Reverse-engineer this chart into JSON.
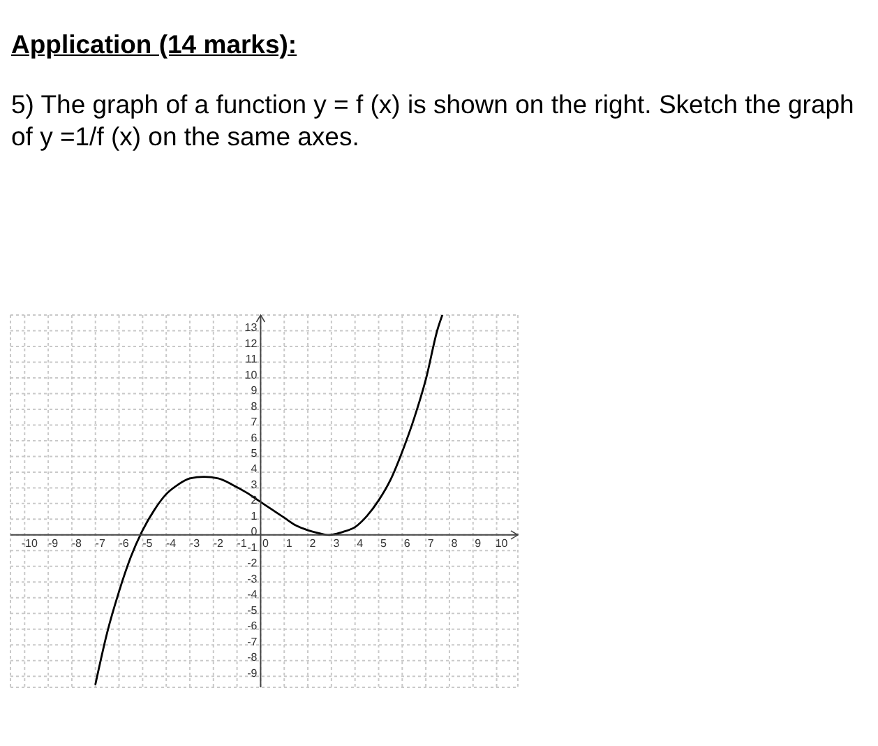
{
  "chart_data": {
    "type": "line",
    "title": "Application (14 marks):",
    "subtitle": "5) The graph of a function y = f (x) is shown on the right. Sketch the graph of y =1/f (x) on the same axes.",
    "x": [
      -7.0,
      -6.5,
      -6.0,
      -5.5,
      -5.0,
      -4.5,
      -4.0,
      -3.5,
      -3.0,
      -2.4,
      -1.8,
      -1.2,
      -0.6,
      0,
      0.5,
      1.0,
      1.5,
      2.0,
      2.5,
      2.9,
      3.5,
      4.0,
      4.5,
      5.0,
      5.5,
      6.0,
      6.5,
      7.0,
      7.5,
      7.7
    ],
    "values": [
      -9.5,
      -6.2,
      -3.6,
      -1.4,
      0.3,
      1.6,
      2.6,
      3.2,
      3.6,
      3.7,
      3.6,
      3.2,
      2.7,
      2.1,
      1.6,
      1.1,
      0.6,
      0.3,
      0.1,
      0,
      0.2,
      0.5,
      1.2,
      2.2,
      3.5,
      5.3,
      7.4,
      9.9,
      13.1,
      14
    ],
    "color": "#000000",
    "xlim": [
      -10.6,
      10.9
    ],
    "ylim": [
      -9.7,
      14
    ],
    "xticks": [
      -10,
      -9,
      -8,
      -7,
      -6,
      -5,
      -4,
      -3,
      -2,
      -1,
      0,
      1,
      2,
      3,
      4,
      5,
      6,
      7,
      8,
      9,
      10
    ],
    "yticks": [
      -9,
      -8,
      -7,
      -6,
      -5,
      -4,
      -3,
      -2,
      -1,
      0,
      1,
      2,
      3,
      4,
      5,
      6,
      7,
      8,
      9,
      10,
      11,
      12,
      13
    ],
    "grid": true
  }
}
